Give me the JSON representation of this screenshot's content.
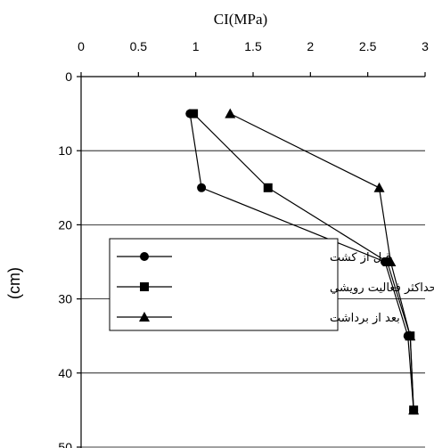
{
  "chart_data": {
    "type": "line",
    "title": "CI(MPa)",
    "xlabel": "CI(MPa)",
    "ylabel": "(cm)",
    "xlim": [
      0,
      3
    ],
    "ylim": [
      0,
      50
    ],
    "y_inverted": true,
    "x_axis_position": "top",
    "x_ticks": [
      "0",
      "0.5",
      "1",
      "1.5",
      "2",
      "2.5",
      "3"
    ],
    "y_ticks": [
      "0",
      "10",
      "20",
      "30",
      "40",
      "50"
    ],
    "grid": "horizontal",
    "legend_position": "center-left",
    "series": [
      {
        "name": "قبل از کشت",
        "marker": "circle",
        "points": [
          [
            0.95,
            5
          ],
          [
            1.05,
            15
          ],
          [
            2.65,
            25
          ],
          [
            2.85,
            35
          ],
          [
            2.9,
            45
          ]
        ]
      },
      {
        "name": "حداكثر فعاليت رويشي",
        "marker": "square",
        "points": [
          [
            0.98,
            5
          ],
          [
            1.63,
            15
          ],
          [
            2.67,
            25
          ],
          [
            2.87,
            35
          ],
          [
            2.9,
            45
          ]
        ]
      },
      {
        "name": "بعد از برداشت",
        "marker": "triangle",
        "points": [
          [
            1.3,
            5
          ],
          [
            2.6,
            15
          ],
          [
            2.7,
            25
          ],
          [
            2.87,
            35
          ],
          [
            2.9,
            45
          ]
        ]
      }
    ]
  }
}
